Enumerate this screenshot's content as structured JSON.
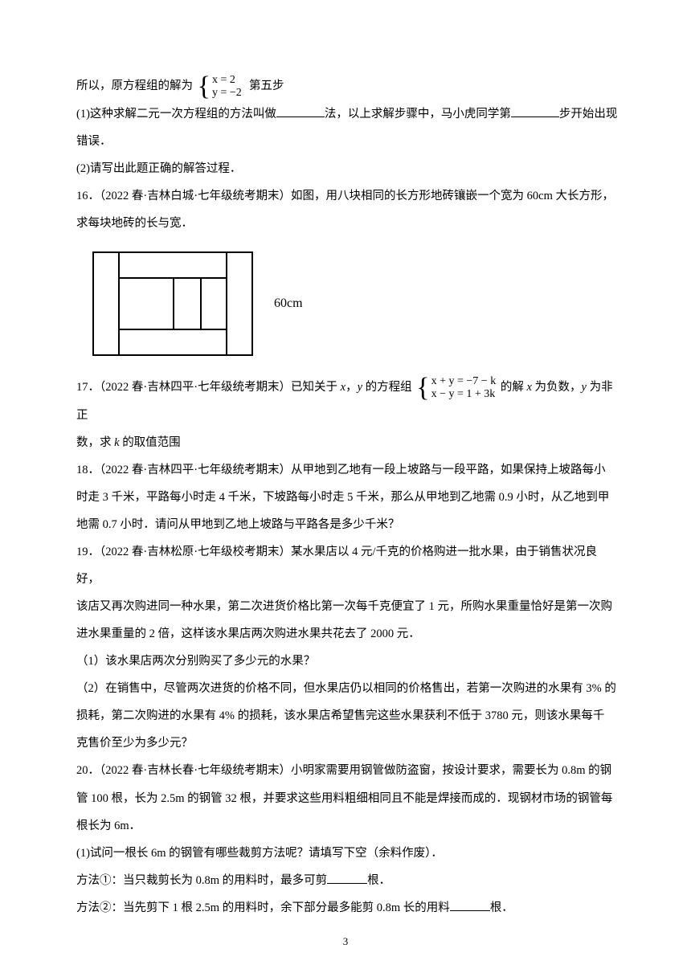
{
  "intro": {
    "prefix": "所以，原方程组的解为",
    "sys_row1": "x = 2",
    "sys_row2": "y = −2",
    "suffix": "第五步"
  },
  "q15": {
    "part1_a": "(1)这种求解二元一次方程组的方法叫做",
    "part1_b": "法，以上求解步骤中，马小虎同学第",
    "part1_c": "步开始出现",
    "part1_d": "错误．",
    "part2": "(2)请写出此题正确的解答过程．"
  },
  "q16": {
    "text1": "16．（2022 春·吉林白城·七年级统考期末）如图，用八块相同的长方形地砖镶嵌一个宽为 60cm 大长方形，",
    "text2": "求每块地砖的长与宽．",
    "figure_label": "60cm"
  },
  "q17": {
    "a": "17．（2022 春·吉林四平·七年级统考期末）已知关于 ",
    "x": "x",
    "comma": "，",
    "y": "y",
    "b": " 的方程组",
    "sys_r1": "x + y = −7 − k",
    "sys_r2": "x − y = 1 + 3k",
    "c": " 的解 ",
    "d": " 为负数，",
    "e": " 为非正",
    "line2a": "数，求 ",
    "k": "k",
    "line2b": " 的取值范围"
  },
  "q18": {
    "l1": "18．（2022 春·吉林四平·七年级统考期末）从甲地到乙地有一段上坡路与一段平路，如果保持上坡路每小",
    "l2": "时走 3 千米，平路每小时走 4 千米，下坡路每小时走 5 千米，那么从甲地到乙地需 0.9 小时，从乙地到甲",
    "l3": "地需 0.7 小时．请问从甲地到乙地上坡路与平路各是多少千米？"
  },
  "q19": {
    "l1": "19．（2022 春·吉林松原·七年级校考期末）某水果店以 4 元/千克的价格购进一批水果，由于销售状况良好，",
    "l2": "该店又再次购进同一种水果，第二次进货价格比第一次每千克便宜了 1 元，所购水果重量恰好是第一次购",
    "l3": "进水果重量的 2 倍，这样该水果店两次购进水果共花去了 2000 元．",
    "p1": "（1）该水果店两次分别购买了多少元的水果？",
    "p2a": "（2）在销售中，尽管两次进货的价格不同，但水果店仍以相同的价格售出，若第一次购进的水果有 3%  的",
    "p2b": "损耗，第二次购进的水果有 4%  的损耗，该水果店希望售完这些水果获利不低于 3780 元，则该水果每千",
    "p2c": "克售价至少为多少元？"
  },
  "q20": {
    "l1": "20．（2022 春·吉林长春·七年级统考期末）小明家需要用钢管做防盗窗，按设计要求，需要长为 0.8m 的钢",
    "l2": "管 100 根，长为 2.5m 的钢管 32 根，并要求这些用料粗细相同且不能是焊接而成的．现钢材市场的钢管每",
    "l3": "根长为 6m．",
    "p1": "(1)试问一根长 6m 的钢管有哪些裁剪方法呢？请填写下空（余料作废）．",
    "m1a": "方法①：当只裁剪长为 0.8m 的用料时，最多可剪",
    "m1b": "根．",
    "m2a": "方法②：当先剪下 1 根 2.5m 的用料时，余下部分最多能剪 0.8m 长的用料",
    "m2b": "根．"
  },
  "page_number": "3"
}
